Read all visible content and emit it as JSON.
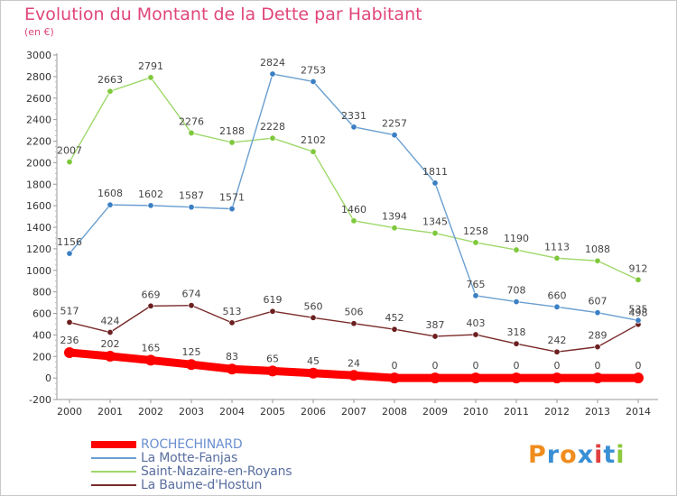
{
  "chart_data": {
    "type": "line",
    "title": "Evolution du Montant de la Dette par Habitant",
    "subtitle": "(en €)",
    "categories": [
      "2000",
      "2001",
      "2002",
      "2003",
      "2004",
      "2005",
      "2006",
      "2007",
      "2008",
      "2009",
      "2010",
      "2011",
      "2012",
      "2013",
      "2014"
    ],
    "ylim": [
      -200,
      3000
    ],
    "yticks": [
      -200,
      0,
      200,
      400,
      600,
      800,
      1000,
      1200,
      1400,
      1600,
      1800,
      2000,
      2200,
      2400,
      2600,
      2800,
      3000
    ],
    "grid": false,
    "legend_position": "bottom-left",
    "series": [
      {
        "name": "ROCHECHINARD",
        "color": "#ff0000",
        "marker": "#ff0000",
        "values": [
          236,
          202,
          165,
          125,
          83,
          65,
          45,
          24,
          0,
          0,
          0,
          0,
          0,
          0,
          0
        ]
      },
      {
        "name": "La Motte-Fanjas",
        "color": "#6a9fd0",
        "marker": "#3b7fc4",
        "values": [
          1156,
          1608,
          1602,
          1587,
          1571,
          2824,
          2753,
          2331,
          2257,
          1811,
          765,
          708,
          660,
          607,
          535
        ]
      },
      {
        "name": "Saint-Nazaire-en-Royans",
        "color": "#9fd86a",
        "marker": "#7ec83c",
        "values": [
          2007,
          2663,
          2791,
          2276,
          2188,
          2228,
          2102,
          1460,
          1394,
          1345,
          1258,
          1190,
          1113,
          1088,
          912
        ]
      },
      {
        "name": "La Baume-d'Hostun",
        "color": "#7a2a2a",
        "marker": "#6b1f1f",
        "values": [
          517,
          424,
          669,
          674,
          513,
          619,
          560,
          506,
          452,
          387,
          403,
          318,
          242,
          289,
          498
        ]
      }
    ]
  },
  "logo": {
    "letters": [
      "P",
      "r",
      "o",
      "x",
      "i",
      "t",
      "i"
    ],
    "colors": [
      "#f08c1e",
      "#3a8fd4",
      "#f08c1e",
      "#3a8fd4",
      "#e04040",
      "#3a8fd4",
      "#8cc83c"
    ]
  }
}
